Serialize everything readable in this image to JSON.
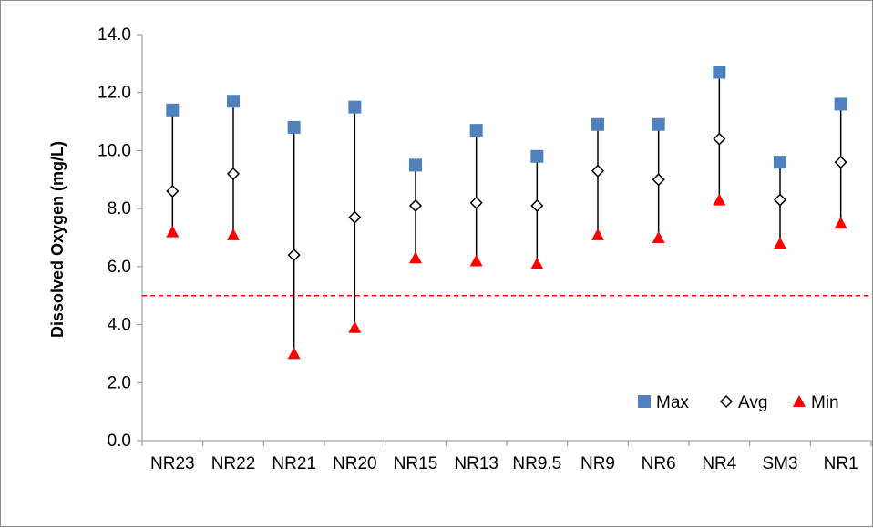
{
  "chart_data": {
    "type": "scatter",
    "title": "",
    "xlabel": "",
    "ylabel": "Dissolved Oxygen (mg/L)",
    "ylim": [
      0,
      14
    ],
    "yticks": [
      "0.0",
      "2.0",
      "4.0",
      "6.0",
      "8.0",
      "10.0",
      "12.0",
      "14.0"
    ],
    "categories": [
      "NR23",
      "NR22",
      "NR21",
      "NR20",
      "NR15",
      "NR13",
      "NR9.5",
      "NR9",
      "NR6",
      "NR4",
      "SM3",
      "NR1"
    ],
    "series": [
      {
        "name": "Max",
        "marker": "square",
        "color": "#4f81bd",
        "values": [
          11.4,
          11.7,
          10.8,
          11.5,
          9.5,
          10.7,
          9.8,
          10.9,
          10.9,
          12.7,
          9.6,
          11.6
        ]
      },
      {
        "name": "Avg",
        "marker": "diamond-open",
        "color": "#000000",
        "values": [
          8.6,
          9.2,
          6.4,
          7.7,
          8.1,
          8.2,
          8.1,
          9.3,
          9.0,
          10.4,
          8.3,
          9.6
        ]
      },
      {
        "name": "Min",
        "marker": "triangle",
        "color": "#ff0000",
        "values": [
          7.2,
          7.1,
          3.0,
          3.9,
          6.3,
          6.2,
          6.1,
          7.1,
          7.0,
          8.3,
          6.8,
          7.5
        ]
      }
    ],
    "reference_line": {
      "value": 5.0,
      "color": "#ff0000",
      "style": "dashed"
    },
    "grid": false,
    "legend_position": "bottom-right"
  }
}
